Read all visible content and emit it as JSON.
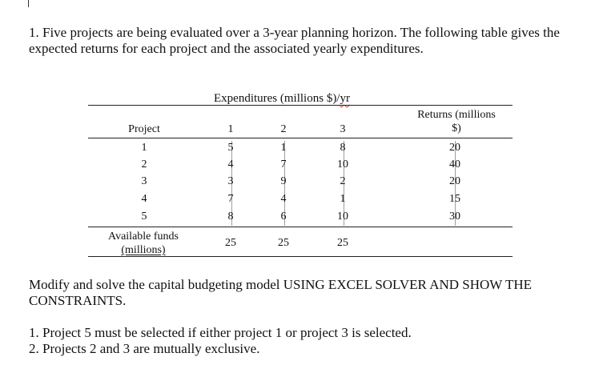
{
  "problem": {
    "intro": "1. Five projects are being evaluated over a 3-year planning horizon. The following table gives the expected returns for each project and the associated yearly expenditures."
  },
  "table": {
    "caption_main": "Expenditures (millions $)/",
    "caption_unit": "yr",
    "project_header": "Project",
    "returns_header_line1": "Returns (millions",
    "returns_header_line2": "$)",
    "year_headers": [
      "1",
      "2",
      "3"
    ],
    "rows": [
      {
        "project": "1",
        "y1": "5",
        "y2": "1",
        "y3": "8",
        "ret": "20"
      },
      {
        "project": "2",
        "y1": "4",
        "y2": "7",
        "y3": "10",
        "ret": "40"
      },
      {
        "project": "3",
        "y1": "3",
        "y2": "9",
        "y3": "2",
        "ret": "20"
      },
      {
        "project": "4",
        "y1": "7",
        "y2": "4",
        "y3": "1",
        "ret": "15"
      },
      {
        "project": "5",
        "y1": "8",
        "y2": "6",
        "y3": "10",
        "ret": "30"
      }
    ],
    "funds_label_line1": "Available funds",
    "funds_label_line2": "(millions)",
    "funds": [
      "25",
      "25",
      "25"
    ]
  },
  "instruction": "Modify and solve the capital budgeting model USING EXCEL SOLVER AND SHOW THE CONSTRAINTS.",
  "constraints": [
    "1. Project 5 must be selected if either project 1 or project 3 is selected.",
    "2. Projects 2 and 3 are mutually exclusive."
  ]
}
